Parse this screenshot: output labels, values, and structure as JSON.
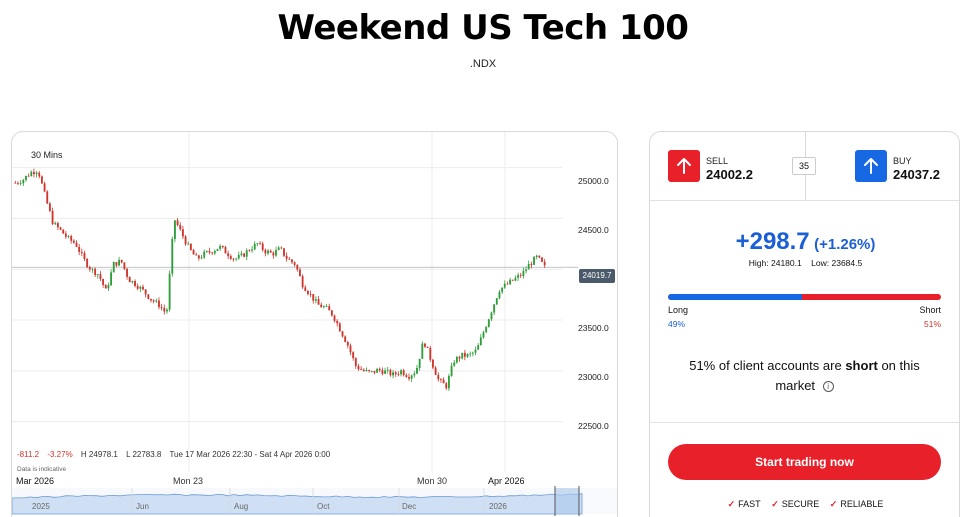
{
  "header": {
    "title": "Weekend US Tech 100",
    "symbol": ".NDX"
  },
  "chart": {
    "interval": "30 Mins",
    "current_price_tag": "24019.7",
    "stats": {
      "change": "-811.2",
      "change_pct": "-3.27%",
      "high": "H 24978.1",
      "low": "L 22783.8",
      "range": "Tue 17 Mar 2026 22:30 - Sat 4 Apr 2026 0:00"
    },
    "indicative_note": "Data is indicative",
    "y_ticks": [
      "25000.0",
      "24500.0",
      "24000.0",
      "23500.0",
      "23000.0",
      "22500.0"
    ],
    "x_ticks": [
      "Mar 2026",
      "Mon 23",
      "Mon 30",
      "Apr 2026"
    ],
    "navigator_labels": [
      "2025",
      "Jun",
      "Aug",
      "Oct",
      "Dec",
      "2026"
    ],
    "colors": {
      "up": "#2e9d3a",
      "down": "#d0342c",
      "accent_red": "#e8202a",
      "accent_blue": "#1668e3"
    }
  },
  "chart_data": {
    "type": "candlestick",
    "x_range": [
      "Tue 17 Mar 2026 22:30",
      "Sat 4 Apr 2026 0:00"
    ],
    "ylim": [
      22300,
      25350
    ],
    "close_path": [
      24850,
      24880,
      24950,
      24978,
      24700,
      24450,
      24380,
      24300,
      24250,
      24100,
      24000,
      23950,
      23780,
      24050,
      24080,
      23900,
      23850,
      23780,
      23700,
      23650,
      23560,
      24500,
      24350,
      24200,
      24100,
      24150,
      24180,
      24220,
      24160,
      24100,
      24130,
      24200,
      24250,
      24180,
      24150,
      24200,
      24100,
      24050,
      23850,
      23750,
      23650,
      23620,
      23550,
      23400,
      23250,
      23050,
      23000,
      22980,
      23010,
      22990,
      22960,
      23000,
      22950,
      23000,
      23300,
      23100,
      22900,
      22850,
      23100,
      23150,
      23150,
      23200,
      23400,
      23600,
      23800,
      23850,
      23900,
      23950,
      24050,
      24120,
      24019.7
    ],
    "high": 24978.1,
    "low": 22783.8,
    "last": 24019.7,
    "change": -811.2,
    "change_pct": -3.27
  },
  "trade": {
    "sell_label": "SELL",
    "sell_price": "24002.2",
    "buy_label": "BUY",
    "buy_price": "24037.2",
    "spread": "35",
    "change_value": "+298.7",
    "change_pct": "(+1.26%)",
    "high": "High: 24180.1",
    "low": "Low: 23684.5",
    "long_label": "Long",
    "short_label": "Short",
    "long_pct_text": "49%",
    "short_pct_text": "51%",
    "long_fraction": 0.49,
    "sentiment_prefix": "51% of client accounts are",
    "sentiment_emph": "short",
    "sentiment_suffix": "on this market",
    "cta": "Start trading now",
    "badges": [
      "FAST",
      "SECURE",
      "RELIABLE"
    ]
  }
}
